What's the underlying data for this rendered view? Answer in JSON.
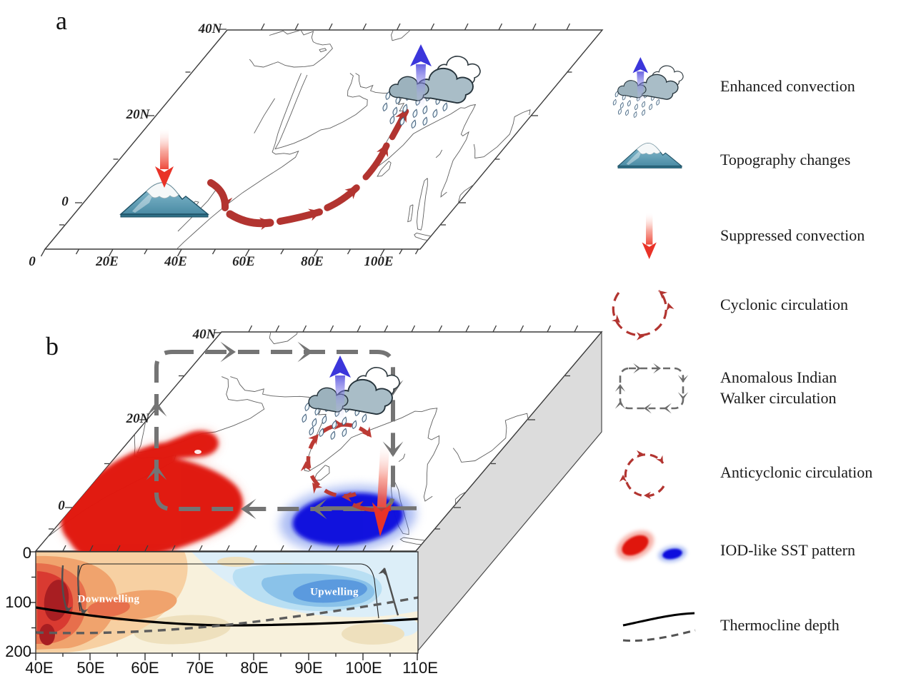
{
  "figure": {
    "panel_a_letter": "a",
    "panel_b_letter": "b"
  },
  "panels": {
    "a": {
      "lat_tick_labels": [
        "40N",
        "20N",
        "0"
      ],
      "lon_tick_labels": [
        "0",
        "20E",
        "40E",
        "60E",
        "80E",
        "100E"
      ]
    },
    "b": {
      "lat_tick_labels": [
        "40N",
        "20N",
        "0"
      ],
      "lon_tick_labels": [
        "40E",
        "50E",
        "60E",
        "70E",
        "80E",
        "90E",
        "100E",
        "110E"
      ],
      "depth_tick_labels": [
        "0",
        "100",
        "200"
      ],
      "annotations": {
        "downwelling": "Downwelling",
        "upwelling": "Upwelling"
      }
    }
  },
  "legend": {
    "items": [
      {
        "icon": "enhanced-convection-icon",
        "label": "Enhanced convection"
      },
      {
        "icon": "topography-changes-icon",
        "label": "Topography changes"
      },
      {
        "icon": "suppressed-convection-icon",
        "label": "Suppressed convection"
      },
      {
        "icon": "cyclonic-circulation-icon",
        "label": "Cyclonic circulation"
      },
      {
        "icon": "walker-circulation-icon",
        "label": "Anomalous Indian",
        "label2": "Walker circulation"
      },
      {
        "icon": "anticyclonic-circulation-icon",
        "label": "Anticyclonic circulation"
      },
      {
        "icon": "iod-sst-pattern-icon",
        "label": "IOD-like SST pattern"
      },
      {
        "icon": "thermocline-depth-icon",
        "label": "Thermocline depth"
      }
    ]
  },
  "colors": {
    "warm_sst": "#e01410",
    "cold_sst": "#0f10dd",
    "arrow_red": "#b23430",
    "walker_gray": "#747474",
    "section_bg": "#f8f1dc",
    "warm_levels": [
      "#f7d0a2",
      "#f0a36d",
      "#e76f4c",
      "#d93a31",
      "#a81e22"
    ],
    "cool_levels": [
      "#dceef8",
      "#b9dff3",
      "#8ac2e9",
      "#5b9ade"
    ],
    "sand_patch": "#eee0bd",
    "thermocline_solid": "#000000",
    "thermocline_dashed": "#5c5c5c"
  }
}
